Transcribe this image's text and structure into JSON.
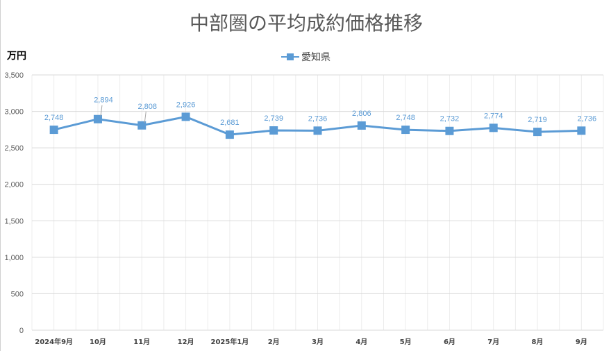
{
  "chart_data": {
    "type": "line",
    "title": "中部圏の平均成約価格推移",
    "ylabel": "万円",
    "xlabel": "",
    "categories": [
      "2024年9月",
      "10月",
      "11月",
      "12月",
      "2025年1月",
      "2月",
      "3月",
      "4月",
      "5月",
      "6月",
      "7月",
      "8月",
      "9月"
    ],
    "series": [
      {
        "name": "愛知県",
        "color": "#5b9bd5",
        "values": [
          2748,
          2894,
          2808,
          2926,
          2681,
          2739,
          2736,
          2806,
          2748,
          2732,
          2774,
          2719,
          2736
        ],
        "labels": [
          "2,748",
          "2,894",
          "2,808",
          "2,926",
          "2,681",
          "2,739",
          "2,736",
          "2,806",
          "2,748",
          "2,732",
          "2,774",
          "2,719",
          "2,736"
        ]
      }
    ],
    "ylim": [
      0,
      3500
    ],
    "yticks": [
      "0",
      "500",
      "1,000",
      "1,500",
      "2,000",
      "2,500",
      "3,000",
      "3,500"
    ],
    "ytick_values": [
      0,
      500,
      1000,
      1500,
      2000,
      2500,
      3000,
      3500
    ],
    "grid": true,
    "legend": "top-center"
  }
}
